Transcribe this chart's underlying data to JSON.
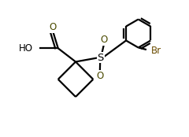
{
  "bg_color": "#ffffff",
  "line_color": "#000000",
  "bond_lw": 1.6,
  "figsize": [
    2.4,
    1.74
  ],
  "dpi": 100,
  "xlim": [
    0.0,
    1.0
  ],
  "ylim": [
    0.0,
    1.0
  ]
}
